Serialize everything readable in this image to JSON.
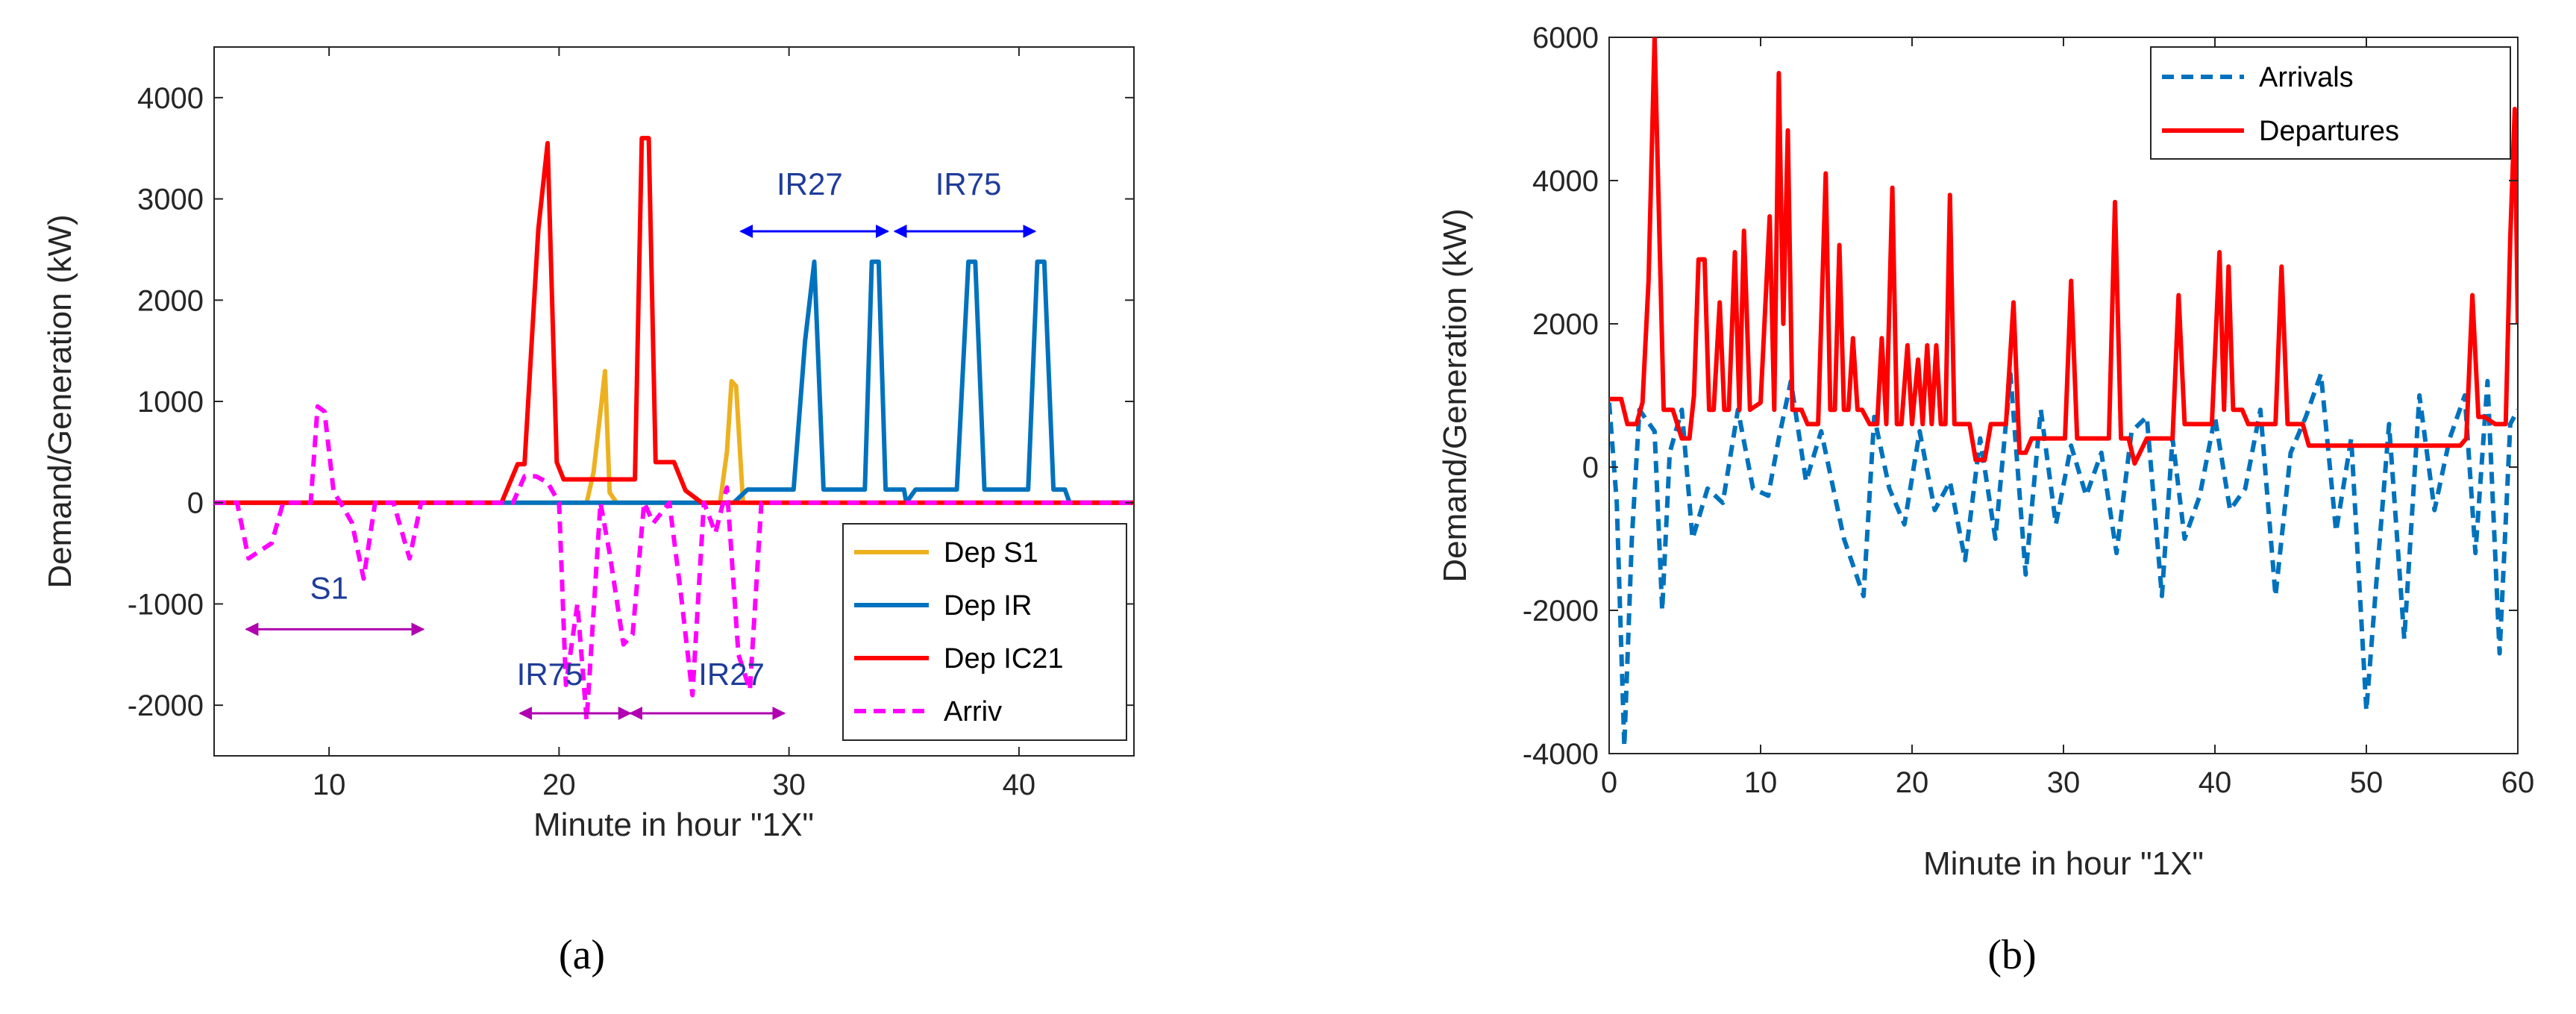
{
  "colors": {
    "dep_s1": "#EDB120",
    "dep_ir": "#0072BD",
    "dep_ic21": "#FF0000",
    "arriv": "#FF00FF",
    "arrivals_b": "#0072BD",
    "departures_b": "#FF0000",
    "annot_magenta": "#B000B0",
    "annot_blue": "#0000FF",
    "annot_text": "#1F3C99"
  },
  "panels": {
    "a": "(a)",
    "b": "(b)"
  },
  "chart_data": [
    {
      "id": "a",
      "type": "line",
      "panel_label": "(a)",
      "xlabel": "Minute in hour \"1X\"",
      "ylabel": "Demand/Generation (kW)",
      "xlim": [
        5,
        45
      ],
      "ylim": [
        -2500,
        4500
      ],
      "xticks": [
        10,
        20,
        30,
        40
      ],
      "yticks": [
        -2000,
        -1000,
        0,
        1000,
        2000,
        3000,
        4000
      ],
      "legend_position": "bottom-right",
      "series": [
        {
          "name": "Dep S1",
          "color_key": "dep_s1",
          "dash": false,
          "x": [
            5,
            21.2,
            21.5,
            21.8,
            22,
            22.2,
            22.5,
            27,
            27.3,
            27.5,
            27.7,
            28,
            45
          ],
          "y": [
            0,
            0,
            300,
            900,
            1300,
            100,
            0,
            0,
            500,
            1200,
            1150,
            0,
            0
          ]
        },
        {
          "name": "Dep IR",
          "color_key": "dep_ir",
          "dash": false,
          "x": [
            5,
            27.6,
            28.2,
            30.2,
            30.7,
            31.1,
            31.5,
            33.3,
            33.6,
            33.9,
            34.2,
            35,
            35.1,
            35.5,
            37.3,
            37.8,
            38.1,
            38.5,
            40.4,
            40.8,
            41.1,
            41.5,
            42,
            42.2,
            45
          ],
          "y": [
            0,
            0,
            130,
            130,
            1600,
            2380,
            130,
            130,
            2380,
            2380,
            130,
            130,
            0,
            130,
            130,
            2380,
            2380,
            130,
            130,
            2380,
            2380,
            130,
            130,
            0,
            0
          ]
        },
        {
          "name": "Dep IC21",
          "color_key": "dep_ic21",
          "dash": false,
          "x": [
            5,
            17.5,
            18.2,
            18.5,
            19.1,
            19.5,
            19.9,
            20.2,
            23.3,
            23.6,
            23.9,
            24.2,
            25,
            25.5,
            26.2,
            45
          ],
          "y": [
            0,
            0,
            380,
            380,
            2700,
            3550,
            400,
            230,
            230,
            3600,
            3600,
            400,
            400,
            120,
            0,
            0
          ]
        },
        {
          "name": "Arriv",
          "color_key": "arriv",
          "dash": true,
          "x": [
            5,
            6,
            6.5,
            7.5,
            8,
            9.2,
            9.5,
            9.8,
            10.2,
            10.5,
            11,
            11.5,
            12,
            12.8,
            13.5,
            14,
            18,
            18.5,
            19,
            19.5,
            20,
            20.3,
            20.8,
            21.2,
            21.8,
            22.2,
            22.8,
            23.2,
            23.7,
            24.1,
            24.8,
            25.3,
            25.8,
            26.3,
            26.8,
            27.3,
            27.8,
            28.3,
            28.8,
            29.3,
            29.8,
            45
          ],
          "y": [
            0,
            0,
            -550,
            -400,
            0,
            0,
            950,
            900,
            100,
            0,
            -200,
            -750,
            0,
            0,
            -550,
            0,
            0,
            260,
            260,
            200,
            0,
            -1800,
            -1000,
            -2150,
            0,
            -500,
            -1400,
            -1300,
            0,
            -200,
            0,
            -900,
            -1900,
            0,
            -300,
            150,
            -1500,
            -1850,
            0,
            0,
            0,
            0
          ]
        }
      ],
      "annotations": [
        {
          "text": "S1",
          "x": 10,
          "y": -950,
          "arrow": [
            6.4,
            14.1
          ],
          "arrow_y": -1250,
          "color_key": "annot_magenta"
        },
        {
          "text": "IR75",
          "x": 19.6,
          "y": -1800,
          "arrow": [
            18.3,
            23.1
          ],
          "arrow_y": -2080,
          "color_key": "annot_magenta"
        },
        {
          "text": "IR27",
          "x": 27.5,
          "y": -1800,
          "arrow": [
            23.1,
            29.8
          ],
          "arrow_y": -2080,
          "color_key": "annot_magenta"
        },
        {
          "text": "IR27",
          "x": 30.9,
          "y": 3040,
          "arrow": [
            27.9,
            34.3
          ],
          "arrow_y": 2680,
          "color_key": "annot_blue"
        },
        {
          "text": "IR75",
          "x": 37.8,
          "y": 3040,
          "arrow": [
            34.6,
            40.7
          ],
          "arrow_y": 2680,
          "color_key": "annot_blue"
        }
      ]
    },
    {
      "id": "b",
      "type": "line",
      "panel_label": "(b)",
      "xlabel": "Minute in hour \"1X\"",
      "ylabel": "Demand/Generation (kW)",
      "xlim": [
        0,
        60
      ],
      "ylim": [
        -4000,
        6000
      ],
      "xticks": [
        0,
        10,
        20,
        30,
        40,
        50,
        60
      ],
      "yticks": [
        -4000,
        -2000,
        0,
        2000,
        4000,
        6000
      ],
      "legend_position": "top-right",
      "series": [
        {
          "name": "Arrivals",
          "color_key": "arrivals_b",
          "dash": true,
          "x": [
            0,
            0.5,
            1,
            1.5,
            2,
            3,
            3.5,
            4,
            4.8,
            5.5,
            6.5,
            7.5,
            8.5,
            9.5,
            10.5,
            11.2,
            12,
            13,
            14,
            15.5,
            16.8,
            17.5,
            18.5,
            19.5,
            20.5,
            21.5,
            22.5,
            23.5,
            24.5,
            25.5,
            26.5,
            27.5,
            28.5,
            29.5,
            30.5,
            31.5,
            32.5,
            33.5,
            34.5,
            35.5,
            36.5,
            37.2,
            38,
            39,
            40,
            41,
            42,
            43,
            44,
            45,
            46,
            47,
            48,
            49,
            50,
            50.7,
            51.5,
            52.5,
            53.5,
            54.5,
            55.5,
            56.5,
            57.2,
            58,
            58.8,
            59.5,
            60
          ],
          "y": [
            900,
            -500,
            -3900,
            -1000,
            800,
            500,
            -2000,
            200,
            800,
            -1000,
            -300,
            -500,
            800,
            -300,
            -400,
            400,
            1200,
            -200,
            500,
            -1000,
            -1800,
            700,
            -300,
            -800,
            500,
            -600,
            -200,
            -1300,
            400,
            -1000,
            1300,
            -1500,
            800,
            -800,
            300,
            -400,
            200,
            -1200,
            500,
            700,
            -1800,
            400,
            -1000,
            -400,
            700,
            -600,
            -300,
            800,
            -1800,
            200,
            700,
            1300,
            -900,
            400,
            -3400,
            -1500,
            600,
            -2400,
            1000,
            -600,
            400,
            1000,
            -1200,
            1200,
            -2600,
            600,
            800
          ]
        },
        {
          "name": "Departures",
          "color_key": "departures_b",
          "dash": false,
          "x": [
            0,
            0.8,
            1.2,
            1.8,
            2.2,
            2.6,
            3,
            3.6,
            4.2,
            4.8,
            5.3,
            5.6,
            5.9,
            6.3,
            6.6,
            6.9,
            7.3,
            7.6,
            7.9,
            8.3,
            8.6,
            8.9,
            9.3,
            10,
            10.6,
            10.9,
            11.2,
            11.5,
            11.8,
            12.1,
            12.4,
            12.7,
            13.1,
            13.8,
            14.3,
            14.6,
            14.9,
            15.2,
            15.5,
            15.8,
            16.1,
            16.4,
            16.7,
            17.2,
            17.7,
            18,
            18.3,
            18.7,
            19,
            19.3,
            19.7,
            20,
            20.4,
            20.7,
            21,
            21.3,
            21.6,
            21.9,
            22.2,
            22.5,
            22.8,
            23.2,
            23.5,
            23.8,
            24.2,
            24.8,
            25.2,
            26.2,
            26.7,
            27.1,
            27.5,
            27.9,
            28.3,
            28.9,
            29.5,
            30.1,
            30.5,
            30.9,
            31.4,
            32.5,
            33,
            33.4,
            33.8,
            34.3,
            34.7,
            35.5,
            36.5,
            37.2,
            37.6,
            38,
            38.4,
            39,
            39.8,
            40.3,
            40.6,
            40.9,
            41.2,
            41.5,
            41.8,
            42.2,
            43.2,
            44,
            44.4,
            44.8,
            45.2,
            45.8,
            46.2,
            47.5,
            49,
            51,
            52.5,
            53.5,
            54.5,
            55.5,
            56.2,
            56.6,
            57,
            57.4,
            57.8,
            58.5,
            59.2,
            59.5,
            59.8,
            60
          ],
          "y": [
            950,
            950,
            600,
            600,
            900,
            2600,
            6000,
            800,
            800,
            400,
            400,
            1000,
            2900,
            2900,
            800,
            800,
            2300,
            800,
            800,
            3000,
            800,
            3300,
            800,
            900,
            3500,
            800,
            5500,
            2000,
            4700,
            800,
            800,
            800,
            600,
            600,
            4100,
            800,
            800,
            3100,
            800,
            800,
            1800,
            800,
            800,
            600,
            600,
            1800,
            600,
            3900,
            600,
            600,
            1700,
            600,
            1500,
            600,
            1700,
            600,
            1700,
            600,
            600,
            3800,
            600,
            600,
            600,
            600,
            100,
            100,
            600,
            600,
            2300,
            200,
            200,
            400,
            400,
            400,
            400,
            400,
            2600,
            400,
            400,
            400,
            400,
            3700,
            400,
            400,
            50,
            400,
            400,
            400,
            2400,
            600,
            600,
            600,
            600,
            3000,
            800,
            2800,
            800,
            800,
            800,
            600,
            600,
            600,
            2800,
            600,
            600,
            600,
            300,
            300,
            300,
            300,
            300,
            300,
            300,
            300,
            300,
            400,
            2400,
            700,
            700,
            600,
            600,
            3200,
            5000,
            2000
          ]
        }
      ]
    }
  ]
}
